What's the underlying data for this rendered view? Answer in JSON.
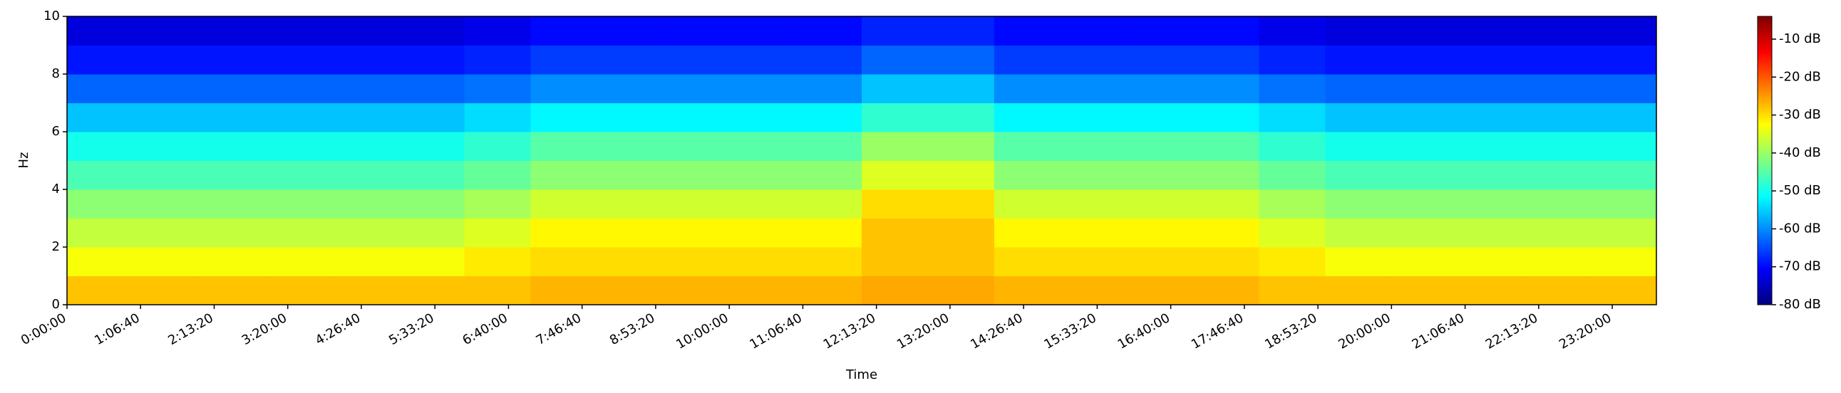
{
  "chart_data": {
    "type": "spectrogram",
    "colormap": "jet",
    "x_label": "Time",
    "y_label": "Hz",
    "xlim": [
      0,
      86400
    ],
    "ylim": [
      0,
      10
    ],
    "xticks": [
      {
        "value": 0,
        "label": "0:00:00"
      },
      {
        "value": 4000,
        "label": "1:06:40"
      },
      {
        "value": 8000,
        "label": "2:13:20"
      },
      {
        "value": 12000,
        "label": "3:20:00"
      },
      {
        "value": 16000,
        "label": "4:26:40"
      },
      {
        "value": 20000,
        "label": "5:33:20"
      },
      {
        "value": 24000,
        "label": "6:40:00"
      },
      {
        "value": 28000,
        "label": "7:46:40"
      },
      {
        "value": 32000,
        "label": "8:53:20"
      },
      {
        "value": 36000,
        "label": "10:00:00"
      },
      {
        "value": 40000,
        "label": "11:06:40"
      },
      {
        "value": 44000,
        "label": "12:13:20"
      },
      {
        "value": 48000,
        "label": "13:20:00"
      },
      {
        "value": 52000,
        "label": "14:26:40"
      },
      {
        "value": 56000,
        "label": "15:33:20"
      },
      {
        "value": 60000,
        "label": "16:40:00"
      },
      {
        "value": 64000,
        "label": "17:46:40"
      },
      {
        "value": 68000,
        "label": "18:53:20"
      },
      {
        "value": 72000,
        "label": "20:00:00"
      },
      {
        "value": 76000,
        "label": "21:06:40"
      },
      {
        "value": 80000,
        "label": "22:13:20"
      },
      {
        "value": 84000,
        "label": "23:20:00"
      }
    ],
    "yticks": [
      0,
      2,
      4,
      6,
      8,
      10
    ],
    "clim": [
      -80,
      -4
    ],
    "cticks": [
      {
        "value": -10,
        "label": "-10 dB"
      },
      {
        "value": -20,
        "label": "-20 dB"
      },
      {
        "value": -30,
        "label": "-30 dB"
      },
      {
        "value": -40,
        "label": "-40 dB"
      },
      {
        "value": -50,
        "label": "-50 dB"
      },
      {
        "value": -60,
        "label": "-60 dB"
      },
      {
        "value": -70,
        "label": "-70 dB"
      },
      {
        "value": -80,
        "label": "-80 dB"
      }
    ],
    "x_bins": [
      0,
      3600,
      7200,
      10800,
      14400,
      18000,
      21600,
      25200,
      28800,
      32400,
      36000,
      39600,
      43200,
      46800,
      50400,
      54000,
      57600,
      61200,
      64800,
      68400,
      72000,
      75600,
      79200,
      82800,
      86400
    ],
    "y_bins": [
      0,
      1,
      2,
      3,
      4,
      5,
      6,
      7,
      8,
      9,
      10
    ],
    "values": [
      [
        -28,
        -28,
        -28,
        -28,
        -28,
        -28,
        -28,
        -27,
        -27,
        -27,
        -27,
        -27,
        -26,
        -26,
        -27,
        -27,
        -27,
        -27,
        -28,
        -28,
        -28,
        -28,
        -28,
        -28
      ],
      [
        -33,
        -33,
        -33,
        -33,
        -33,
        -33,
        -31,
        -30,
        -30,
        -30,
        -30,
        -30,
        -28,
        -28,
        -30,
        -30,
        -30,
        -30,
        -31,
        -33,
        -33,
        -33,
        -33,
        -33
      ],
      [
        -37,
        -37,
        -37,
        -37,
        -37,
        -37,
        -35,
        -32,
        -32,
        -32,
        -32,
        -32,
        -28,
        -28,
        -32,
        -32,
        -32,
        -32,
        -35,
        -37,
        -37,
        -37,
        -37,
        -37
      ],
      [
        -41,
        -41,
        -41,
        -41,
        -41,
        -41,
        -39,
        -36,
        -36,
        -36,
        -36,
        -36,
        -30,
        -30,
        -36,
        -36,
        -36,
        -36,
        -39,
        -41,
        -41,
        -41,
        -41,
        -41
      ],
      [
        -46,
        -46,
        -46,
        -46,
        -46,
        -46,
        -44,
        -41,
        -41,
        -41,
        -41,
        -41,
        -35,
        -35,
        -41,
        -41,
        -41,
        -41,
        -44,
        -46,
        -46,
        -46,
        -46,
        -46
      ],
      [
        -50,
        -50,
        -50,
        -50,
        -50,
        -50,
        -48,
        -45,
        -45,
        -45,
        -45,
        -45,
        -40,
        -40,
        -45,
        -45,
        -45,
        -45,
        -48,
        -50,
        -50,
        -50,
        -50,
        -50
      ],
      [
        -56,
        -56,
        -56,
        -56,
        -56,
        -56,
        -54,
        -52,
        -52,
        -52,
        -52,
        -52,
        -48,
        -48,
        -52,
        -52,
        -52,
        -52,
        -54,
        -56,
        -56,
        -56,
        -56,
        -56
      ],
      [
        -63,
        -63,
        -63,
        -63,
        -63,
        -63,
        -62,
        -60,
        -60,
        -60,
        -60,
        -60,
        -56,
        -56,
        -60,
        -60,
        -60,
        -60,
        -62,
        -63,
        -63,
        -63,
        -63,
        -63
      ],
      [
        -69,
        -69,
        -69,
        -69,
        -69,
        -69,
        -68,
        -66,
        -66,
        -66,
        -66,
        -66,
        -63,
        -63,
        -66,
        -66,
        -66,
        -66,
        -68,
        -69,
        -69,
        -69,
        -69,
        -69
      ],
      [
        -73,
        -73,
        -73,
        -73,
        -73,
        -73,
        -72,
        -70,
        -70,
        -70,
        -70,
        -70,
        -68,
        -68,
        -70,
        -70,
        -70,
        -70,
        -72,
        -73,
        -73,
        -73,
        -73,
        -73
      ]
    ]
  }
}
